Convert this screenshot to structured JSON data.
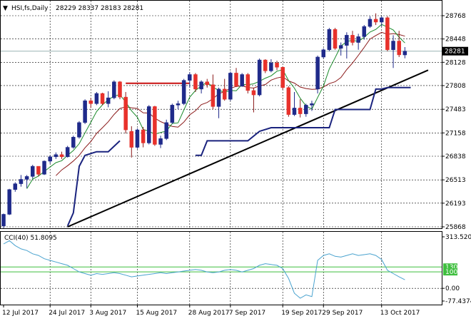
{
  "chart_data": {
    "type": "candlestick",
    "header": {
      "symbol": "HSI,fs,Daily",
      "ohlc_text": "28229 28337 28183 28281",
      "triangle": "▼"
    },
    "price_axis": {
      "ticks": [
        28768,
        28448,
        28128,
        27808,
        27483,
        27158,
        26838,
        26513,
        26193,
        25868
      ],
      "ylim": [
        25868,
        28768
      ],
      "current_price_label": "28281",
      "current_price": 28281
    },
    "x_axis": {
      "labels": [
        "12 Jul 2017",
        "24 Jul 2017",
        "3 Aug 2017",
        "15 Aug 2017",
        "28 Aug 2017",
        "7 Sep 2017",
        "19 Sep 2017",
        "29 Sep 2017",
        "13 Oct 2017"
      ],
      "label_bar_index": [
        0,
        8,
        15,
        23,
        32,
        39,
        48,
        55,
        65
      ]
    },
    "candles": [
      [
        25880,
        26050,
        25850,
        26040
      ],
      [
        26040,
        26390,
        26030,
        26380
      ],
      [
        26380,
        26480,
        26350,
        26460
      ],
      [
        26460,
        26580,
        26420,
        26520
      ],
      [
        26520,
        26580,
        26400,
        26560
      ],
      [
        26560,
        26720,
        26530,
        26700
      ],
      [
        26700,
        26700,
        26560,
        26590
      ],
      [
        26590,
        26780,
        26580,
        26770
      ],
      [
        26770,
        26850,
        26740,
        26830
      ],
      [
        26830,
        26890,
        26800,
        26860
      ],
      [
        26860,
        26900,
        26800,
        26830
      ],
      [
        26830,
        26980,
        26820,
        26960
      ],
      [
        26960,
        27120,
        26940,
        27100
      ],
      [
        27100,
        27320,
        27080,
        27300
      ],
      [
        27300,
        27620,
        27280,
        27600
      ],
      [
        27600,
        27640,
        27500,
        27560
      ],
      [
        27560,
        27720,
        27540,
        27700
      ],
      [
        27700,
        27710,
        27540,
        27560
      ],
      [
        27560,
        27730,
        27510,
        27640
      ],
      [
        27640,
        27880,
        27620,
        27860
      ],
      [
        27860,
        27870,
        27620,
        27650
      ],
      [
        27650,
        27720,
        27150,
        27200
      ],
      [
        27180,
        27250,
        26820,
        26960
      ],
      [
        26960,
        27220,
        26940,
        27200
      ],
      [
        27200,
        27240,
        26960,
        27020
      ],
      [
        27020,
        27540,
        27000,
        27520
      ],
      [
        27520,
        27530,
        26980,
        27000
      ],
      [
        27000,
        27120,
        26950,
        27080
      ],
      [
        27080,
        27340,
        27060,
        27300
      ],
      [
        27300,
        27560,
        27280,
        27540
      ],
      [
        27540,
        27600,
        27480,
        27560
      ],
      [
        27560,
        27900,
        27540,
        27880
      ],
      [
        27880,
        27990,
        27780,
        27960
      ],
      [
        27960,
        27980,
        27720,
        27760
      ],
      [
        27760,
        27880,
        27700,
        27860
      ],
      [
        27860,
        27900,
        27780,
        27820
      ],
      [
        27820,
        27960,
        27480,
        27520
      ],
      [
        27520,
        27780,
        27360,
        27760
      ],
      [
        27760,
        27900,
        27600,
        27620
      ],
      [
        27620,
        28000,
        27600,
        27980
      ],
      [
        27980,
        28050,
        27790,
        27800
      ],
      [
        27800,
        27980,
        27790,
        27960
      ],
      [
        27960,
        27980,
        27700,
        27740
      ],
      [
        27740,
        27780,
        27440,
        27680
      ],
      [
        27680,
        28180,
        27660,
        28160
      ],
      [
        28160,
        28170,
        27980,
        28010
      ],
      [
        28010,
        28170,
        27990,
        28120
      ],
      [
        28120,
        28150,
        28020,
        28060
      ],
      [
        28060,
        28070,
        27750,
        27780
      ],
      [
        27780,
        27800,
        27380,
        27410
      ],
      [
        27410,
        27720,
        27390,
        27500
      ],
      [
        27500,
        27620,
        27370,
        27420
      ],
      [
        27420,
        27560,
        27380,
        27540
      ],
      [
        27540,
        27600,
        27460,
        27560
      ],
      [
        27760,
        28220,
        27700,
        28200
      ],
      [
        28200,
        28320,
        28180,
        28300
      ],
      [
        28300,
        28600,
        28280,
        28580
      ],
      [
        28580,
        28600,
        28300,
        28320
      ],
      [
        28320,
        28400,
        28220,
        28360
      ],
      [
        28360,
        28540,
        28180,
        28500
      ],
      [
        28500,
        28560,
        28360,
        28400
      ],
      [
        28400,
        28520,
        28300,
        28480
      ],
      [
        28480,
        28640,
        28440,
        28620
      ],
      [
        28620,
        28760,
        28600,
        28720
      ],
      [
        28720,
        28800,
        28640,
        28680
      ],
      [
        28680,
        28760,
        28620,
        28740
      ],
      [
        28740,
        28760,
        28280,
        28300
      ],
      [
        28300,
        28500,
        28050,
        28420
      ],
      [
        28420,
        28560,
        28200,
        28230
      ],
      [
        28229,
        28337,
        28183,
        28281
      ]
    ],
    "cci": {
      "label": "CCI(40) 51.8095",
      "ticks": [
        "313.5204",
        "130",
        "100",
        "0.00",
        "-77.4374"
      ],
      "levels": [
        130,
        100
      ],
      "ylim": [
        -77.4374,
        313.5204
      ],
      "values": [
        270,
        290,
        260,
        240,
        230,
        210,
        200,
        180,
        170,
        160,
        150,
        140,
        120,
        100,
        90,
        80,
        90,
        85,
        90,
        95,
        90,
        80,
        70,
        75,
        80,
        85,
        90,
        95,
        90,
        95,
        100,
        105,
        110,
        115,
        110,
        100,
        95,
        100,
        110,
        115,
        110,
        100,
        110,
        120,
        140,
        150,
        145,
        140,
        120,
        60,
        -30,
        -60,
        -40,
        -50,
        170,
        200,
        210,
        195,
        190,
        200,
        210,
        200,
        205,
        210,
        200,
        175,
        110,
        90,
        70,
        52
      ]
    },
    "colors": {
      "bull": "#1f2a8a",
      "bear": "#e8312b",
      "bear_dark": "#8b1a1a",
      "ma_fast": "#1a8a2a",
      "ma_slow": "#8b1a1a",
      "navy_line": "#1a237e",
      "trendline": "#000000",
      "price_line": "#9ab3b3",
      "cci_line": "#4aa3cf",
      "cci_level": "#3fbf3f",
      "grid": "#000000",
      "red_hline": "#c81010"
    }
  }
}
